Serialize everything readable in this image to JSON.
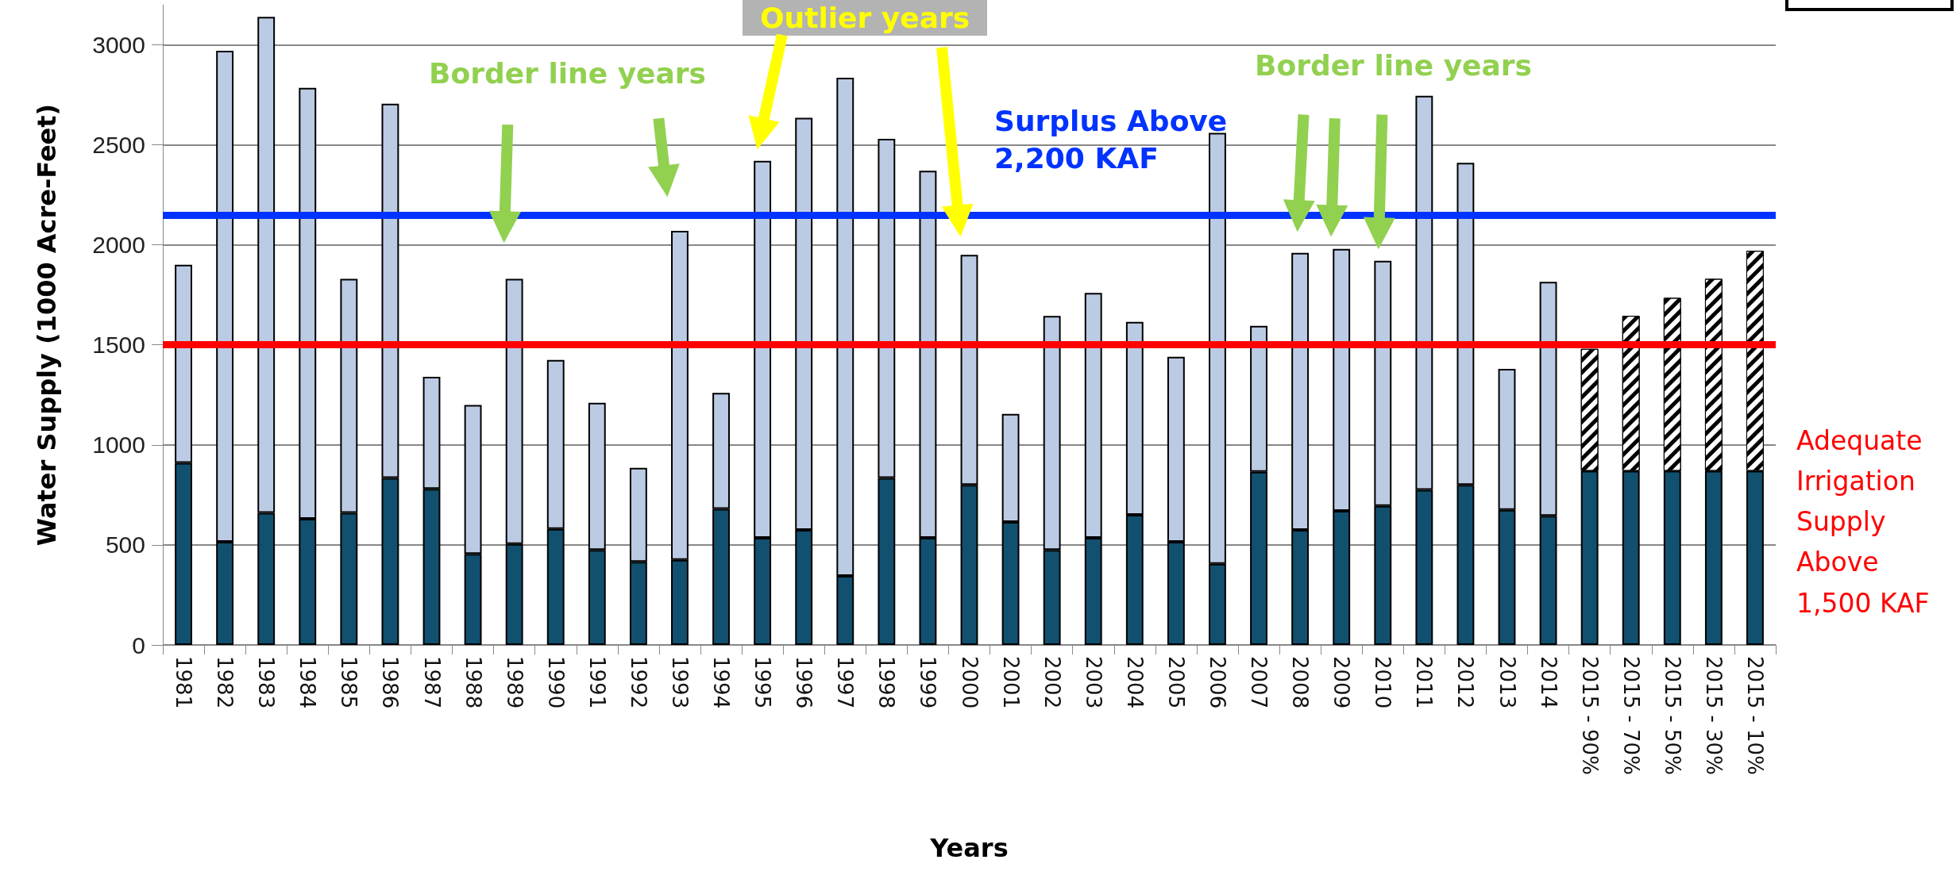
{
  "chart_data": {
    "type": "bar",
    "stacked": true,
    "xlabel": "Years",
    "ylabel": "Water Supply (1000 Acre-Feet)",
    "categories": [
      "1981",
      "1982",
      "1983",
      "1984",
      "1985",
      "1986",
      "1987",
      "1988",
      "1989",
      "1990",
      "1991",
      "1992",
      "1993",
      "1994",
      "1995",
      "1996",
      "1997",
      "1998",
      "1999",
      "2000",
      "2001",
      "2002",
      "2003",
      "2004",
      "2005",
      "2006",
      "2007",
      "2008",
      "2009",
      "2010",
      "2011",
      "2012",
      "2013",
      "2014",
      "2015 - 90%",
      "2015 - 70%",
      "2015 - 50%",
      "2015 - 30%",
      "2015 - 10%"
    ],
    "series": [
      {
        "color": "#12506f",
        "values": [
          910,
          515,
          660,
          630,
          660,
          835,
          780,
          455,
          505,
          580,
          475,
          415,
          425,
          680,
          535,
          575,
          345,
          835,
          535,
          800,
          615,
          475,
          535,
          650,
          515,
          405,
          865,
          575,
          670,
          695,
          775,
          800,
          675,
          645,
          870,
          870,
          870,
          870,
          870
        ]
      },
      {
        "color": "#bccbe4",
        "values": [
          990,
          2455,
          2480,
          2155,
          1170,
          1870,
          560,
          745,
          1325,
          845,
          735,
          470,
          1645,
          580,
          1885,
          2060,
          2490,
          1695,
          1835,
          1150,
          540,
          1170,
          1225,
          965,
          925,
          2155,
          730,
          1385,
          1310,
          1225,
          1970,
          1610,
          705,
          1170,
          null,
          null,
          null,
          null,
          null
        ]
      },
      {
        "color": "#000000",
        "values": [
          null,
          null,
          null,
          null,
          null,
          null,
          null,
          null,
          null,
          null,
          null,
          null,
          null,
          null,
          null,
          null,
          null,
          null,
          null,
          null,
          null,
          null,
          null,
          null,
          null,
          null,
          null,
          null,
          null,
          null,
          null,
          null,
          null,
          null,
          610,
          775,
          865,
          960,
          1100
        ]
      }
    ],
    "ylim": [
      0,
      3200
    ],
    "yticks": [
      0,
      500,
      1000,
      1500,
      2000,
      2500,
      3000
    ],
    "grid": "y",
    "ref_lines": [
      {
        "axis": "y",
        "value": 2150,
        "label": "Surplus Above 2,200 KAF",
        "color": "#0033ff"
      },
      {
        "axis": "y",
        "value": 1500,
        "label": "Adequate Irrigation Supply Above 1,500 KAF",
        "color": "#ff0000"
      }
    ],
    "annotations": [
      "Border line years",
      "Outlier years",
      "Border line years"
    ]
  }
}
